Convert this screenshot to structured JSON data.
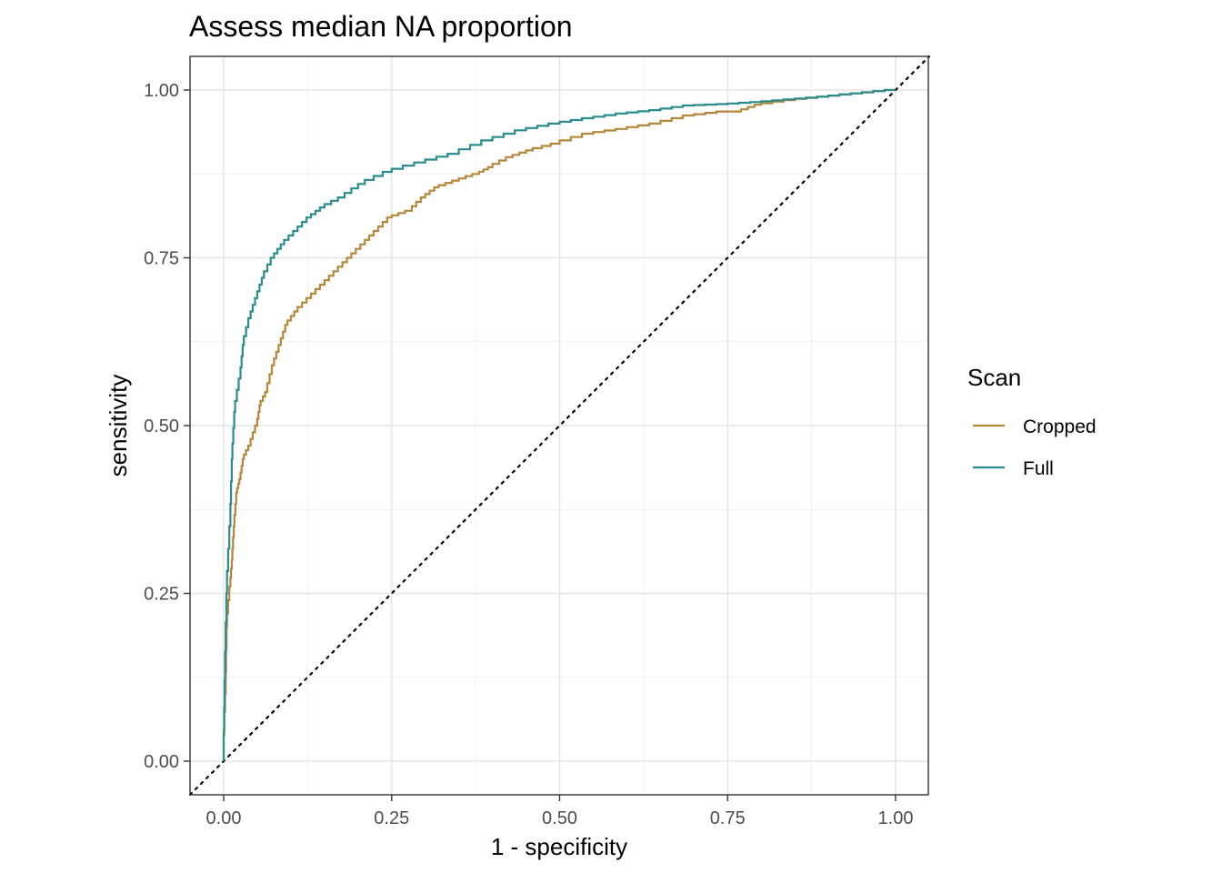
{
  "chart_data": {
    "type": "line",
    "title": "Assess median NA proportion",
    "xlabel": "1 - specificity",
    "ylabel": "sensitivity",
    "xlim": [
      -0.05,
      1.05
    ],
    "ylim": [
      -0.05,
      1.05
    ],
    "x_ticks": [
      0,
      0.25,
      0.5,
      0.75,
      1
    ],
    "y_ticks": [
      0,
      0.25,
      0.5,
      0.75,
      1
    ],
    "x_tick_labels": [
      "0.00",
      "0.25",
      "0.50",
      "0.75",
      "1.00"
    ],
    "y_tick_labels": [
      "0.00",
      "0.25",
      "0.50",
      "0.75",
      "1.00"
    ],
    "grid": true,
    "reference_line": "diagonal dotted y = x",
    "legend": {
      "title": "Scan",
      "position": "right"
    },
    "series": [
      {
        "name": "Cropped",
        "color": "#b5873a",
        "points": [
          [
            0,
            0
          ],
          [
            0,
            0.02
          ],
          [
            0.003,
            0.1
          ],
          [
            0.005,
            0.2
          ],
          [
            0.01,
            0.26
          ],
          [
            0.013,
            0.3
          ],
          [
            0.016,
            0.35
          ],
          [
            0.02,
            0.4
          ],
          [
            0.025,
            0.42
          ],
          [
            0.03,
            0.45
          ],
          [
            0.04,
            0.47
          ],
          [
            0.05,
            0.5
          ],
          [
            0.055,
            0.53
          ],
          [
            0.065,
            0.55
          ],
          [
            0.075,
            0.59
          ],
          [
            0.085,
            0.62
          ],
          [
            0.095,
            0.65
          ],
          [
            0.11,
            0.67
          ],
          [
            0.13,
            0.69
          ],
          [
            0.15,
            0.71
          ],
          [
            0.17,
            0.73
          ],
          [
            0.19,
            0.75
          ],
          [
            0.21,
            0.77
          ],
          [
            0.23,
            0.79
          ],
          [
            0.25,
            0.81
          ],
          [
            0.28,
            0.82
          ],
          [
            0.3,
            0.84
          ],
          [
            0.32,
            0.855
          ],
          [
            0.35,
            0.865
          ],
          [
            0.38,
            0.875
          ],
          [
            0.4,
            0.885
          ],
          [
            0.43,
            0.9
          ],
          [
            0.46,
            0.91
          ],
          [
            0.5,
            0.92
          ],
          [
            0.55,
            0.935
          ],
          [
            0.6,
            0.942
          ],
          [
            0.65,
            0.95
          ],
          [
            0.7,
            0.962
          ],
          [
            0.75,
            0.968
          ],
          [
            0.77,
            0.968
          ],
          [
            0.8,
            0.978
          ],
          [
            0.85,
            0.985
          ],
          [
            0.9,
            0.99
          ],
          [
            0.95,
            0.995
          ],
          [
            1,
            1
          ]
        ]
      },
      {
        "name": "Full",
        "color": "#2a8c8c",
        "points": [
          [
            0,
            0
          ],
          [
            0.002,
            0.12
          ],
          [
            0.005,
            0.25
          ],
          [
            0.01,
            0.35
          ],
          [
            0.013,
            0.45
          ],
          [
            0.017,
            0.52
          ],
          [
            0.025,
            0.57
          ],
          [
            0.03,
            0.62
          ],
          [
            0.04,
            0.66
          ],
          [
            0.05,
            0.69
          ],
          [
            0.06,
            0.72
          ],
          [
            0.075,
            0.75
          ],
          [
            0.09,
            0.77
          ],
          [
            0.11,
            0.79
          ],
          [
            0.13,
            0.81
          ],
          [
            0.15,
            0.825
          ],
          [
            0.18,
            0.84
          ],
          [
            0.21,
            0.86
          ],
          [
            0.25,
            0.878
          ],
          [
            0.3,
            0.892
          ],
          [
            0.35,
            0.905
          ],
          [
            0.4,
            0.925
          ],
          [
            0.45,
            0.94
          ],
          [
            0.5,
            0.95
          ],
          [
            0.55,
            0.958
          ],
          [
            0.6,
            0.965
          ],
          [
            0.65,
            0.97
          ],
          [
            0.7,
            0.977
          ],
          [
            0.75,
            0.979
          ],
          [
            0.8,
            0.982
          ],
          [
            0.85,
            0.986
          ],
          [
            0.9,
            0.99
          ],
          [
            0.95,
            0.995
          ],
          [
            1,
            1
          ]
        ]
      }
    ]
  }
}
